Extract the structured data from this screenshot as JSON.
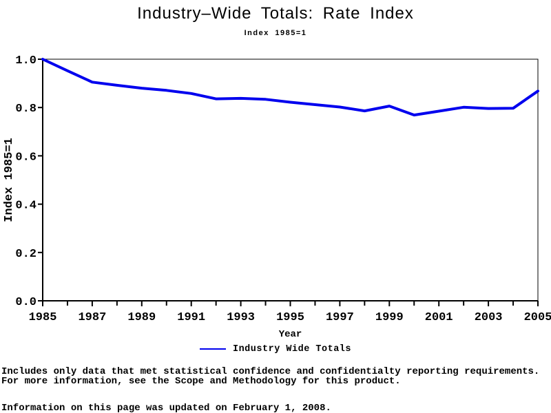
{
  "header": {
    "title": "Industry–Wide Totals: Rate Index",
    "subtitle": "Index 1985=1"
  },
  "legend": {
    "label": "Industry Wide Totals",
    "swatch_color": "#0000ee"
  },
  "footnotes": {
    "line1": "Includes only data that met statistical confidence and confidentialty reporting requirements.",
    "line2": "For more information, see the Scope and Methodology for this product.",
    "updated": "Information on this page was updated on February 1, 2008."
  },
  "chart_data": {
    "type": "line",
    "title": "Industry–Wide Totals: Rate Index",
    "subtitle": "Index 1985=1",
    "xlabel": "Year",
    "ylabel": "Index 1985=1",
    "xlim": [
      1985,
      2005
    ],
    "ylim": [
      0.0,
      1.0
    ],
    "grid": false,
    "frame": true,
    "legend_position": "bottom",
    "line_color": "#0000ee",
    "axis_color": "#000000",
    "xticks_labeled": [
      1985,
      1987,
      1989,
      1991,
      1993,
      1995,
      1997,
      1999,
      2001,
      2003,
      2005
    ],
    "xticks_minor": [
      1986,
      1988,
      1990,
      1992,
      1994,
      1996,
      1998,
      2000,
      2002,
      2004
    ],
    "yticks": [
      0.0,
      0.2,
      0.4,
      0.6,
      0.8,
      1.0
    ],
    "x": [
      1985,
      1986,
      1987,
      1988,
      1989,
      1990,
      1991,
      1992,
      1993,
      1994,
      1995,
      1996,
      1997,
      1998,
      1999,
      2000,
      2001,
      2002,
      2003,
      2004,
      2005
    ],
    "series": [
      {
        "name": "Industry Wide Totals",
        "color": "#0000ee",
        "values": [
          1.0,
          0.952,
          0.905,
          0.892,
          0.88,
          0.871,
          0.858,
          0.836,
          0.838,
          0.834,
          0.822,
          0.812,
          0.802,
          0.786,
          0.806,
          0.769,
          0.785,
          0.801,
          0.796,
          0.797,
          0.868
        ]
      }
    ]
  }
}
